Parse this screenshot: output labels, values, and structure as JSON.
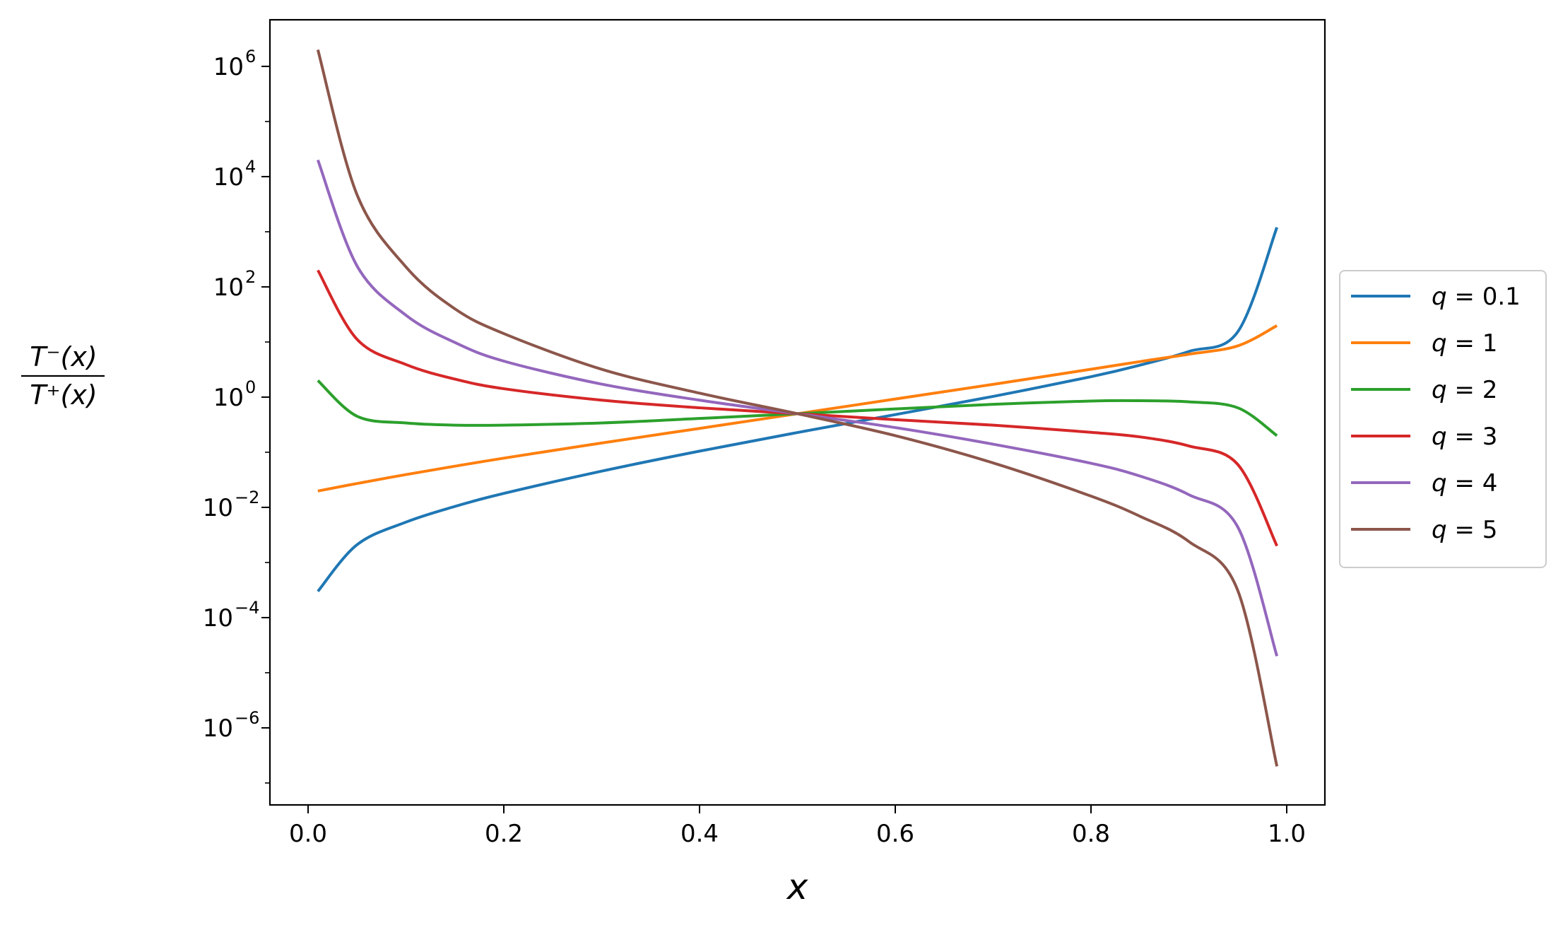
{
  "chart_data": {
    "type": "line",
    "xlabel": "x",
    "ylabel": "T⁻(x) / T⁺(x)",
    "ylabel_numerator": "T⁻(x)",
    "ylabel_denominator": "T⁺(x)",
    "yscale": "log",
    "xlim": [
      -0.039,
      1.039
    ],
    "ylim": [
      4e-08,
      7000000.0
    ],
    "x_ticks": [
      0.0,
      0.2,
      0.4,
      0.6,
      0.8,
      1.0
    ],
    "x_tick_labels": [
      "0.0",
      "0.2",
      "0.4",
      "0.6",
      "0.8",
      "1.0"
    ],
    "y_ticks": [
      1e-06,
      0.0001,
      0.01,
      1,
      100.0,
      10000.0,
      1000000.0
    ],
    "y_tick_labels": [
      {
        "base": "10",
        "exp": "−6"
      },
      {
        "base": "10",
        "exp": "−4"
      },
      {
        "base": "10",
        "exp": "−2"
      },
      {
        "base": "10",
        "exp": "0"
      },
      {
        "base": "10",
        "exp": "2"
      },
      {
        "base": "10",
        "exp": "4"
      },
      {
        "base": "10",
        "exp": "6"
      }
    ],
    "grid": false,
    "legend_position": "outside right, center",
    "x": [
      0.01,
      0.05,
      0.1,
      0.15,
      0.2,
      0.3,
      0.4,
      0.5,
      0.6,
      0.7,
      0.8,
      0.85,
      0.9,
      0.95,
      0.99
    ],
    "series": [
      {
        "name": "q = 0.1",
        "q_label": "0.1",
        "color": "#1f77b4",
        "values": [
          0.0003,
          0.0021,
          0.0054,
          0.0104,
          0.0179,
          0.0454,
          0.1047,
          0.2279,
          0.4817,
          1.0301,
          2.3438,
          3.7956,
          6.73,
          15.32,
          1200
        ]
      },
      {
        "name": "q = 1",
        "q_label": "1",
        "color": "#ff7f0e",
        "values": [
          0.0198,
          0.0271,
          0.0393,
          0.0558,
          0.0781,
          0.147,
          0.2707,
          0.5,
          0.9232,
          1.7039,
          3.2063,
          4.4088,
          6.0,
          8.5,
          19.8
        ]
      },
      {
        "name": "q = 2",
        "q_label": "2",
        "color": "#2ca02c",
        "values": [
          2.0,
          0.45,
          0.34,
          0.31,
          0.31,
          0.34,
          0.41,
          0.5,
          0.61,
          0.74,
          0.85,
          0.86,
          0.82,
          0.64,
          0.2
        ]
      },
      {
        "name": "q = 3",
        "q_label": "3",
        "color": "#d62728",
        "values": [
          200,
          11.2,
          3.9,
          2.12,
          1.42,
          0.88,
          0.64,
          0.5,
          0.39,
          0.31,
          0.23,
          0.19,
          0.13,
          0.06,
          0.002
        ]
      },
      {
        "name": "q = 4",
        "q_label": "4",
        "color": "#9467bd",
        "values": [
          20000,
          240,
          30.6,
          9.8,
          4.5,
          1.72,
          0.88,
          0.5,
          0.28,
          0.14,
          0.063,
          0.037,
          0.017,
          0.0044,
          2e-05
        ]
      },
      {
        "name": "q = 5",
        "q_label": "5",
        "color": "#8c564b",
        "values": [
          2000000,
          4700,
          230,
          40,
          14.2,
          3.2,
          1.18,
          0.5,
          0.2,
          0.064,
          0.016,
          0.0069,
          0.0024,
          0.00031,
          2e-07
        ]
      }
    ]
  }
}
